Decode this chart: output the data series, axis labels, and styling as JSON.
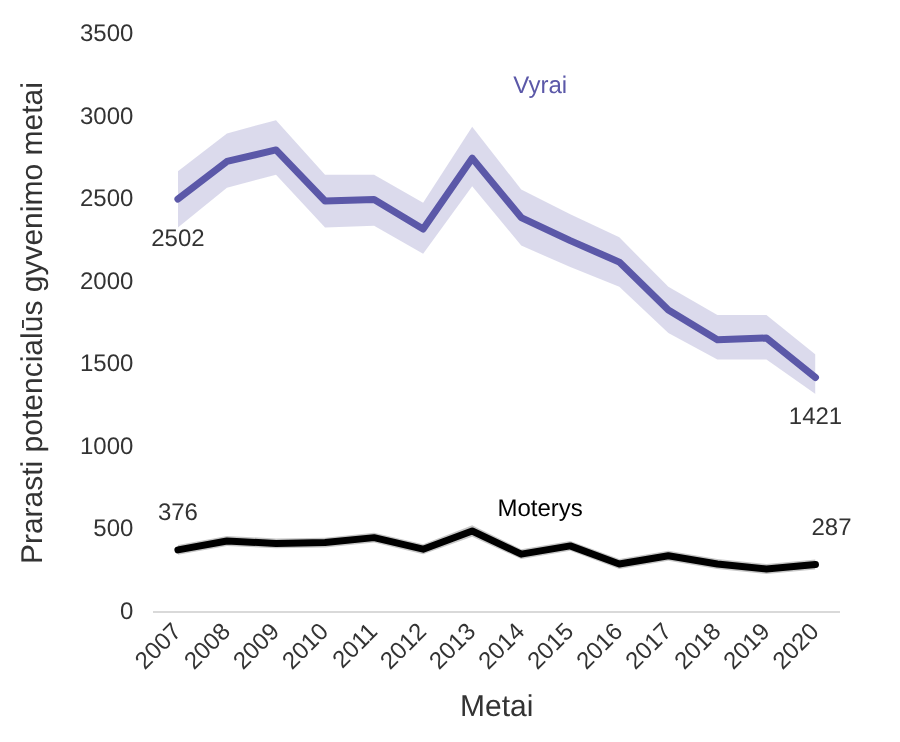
{
  "chart_data": {
    "type": "line",
    "xlabel": "Metai",
    "ylabel": "Prarasti potencialūs gyvenimo metai",
    "categories": [
      "2007",
      "2008",
      "2009",
      "2010",
      "2011",
      "2012",
      "2013",
      "2014",
      "2015",
      "2016",
      "2017",
      "2018",
      "2019",
      "2020"
    ],
    "ylim": [
      0,
      3500
    ],
    "yticks": [
      0,
      500,
      1000,
      1500,
      2000,
      2500,
      3000,
      3500
    ],
    "grid": false,
    "legend": false,
    "marker": "none",
    "line_style": "solid",
    "series": [
      {
        "name": "Vyrai",
        "color": "#5b58a8",
        "values": [
          2502,
          2730,
          2800,
          2490,
          2500,
          2320,
          2750,
          2390,
          2250,
          2120,
          1830,
          1650,
          1660,
          1421
        ],
        "lower": [
          2330,
          2570,
          2650,
          2330,
          2340,
          2170,
          2580,
          2220,
          2090,
          1970,
          1690,
          1530,
          1530,
          1320
        ],
        "upper": [
          2670,
          2900,
          2980,
          2650,
          2650,
          2480,
          2940,
          2560,
          2410,
          2270,
          1970,
          1800,
          1800,
          1560
        ],
        "value_labels": [
          "2502",
          null,
          null,
          null,
          null,
          null,
          null,
          null,
          null,
          null,
          null,
          null,
          null,
          "1421"
        ]
      },
      {
        "name": "Moterys",
        "color": "#000000",
        "values": [
          376,
          430,
          415,
          420,
          450,
          380,
          490,
          350,
          400,
          290,
          340,
          290,
          260,
          287
        ],
        "lower": [
          346,
          400,
          385,
          390,
          420,
          350,
          455,
          320,
          370,
          260,
          310,
          260,
          230,
          257
        ],
        "upper": [
          406,
          460,
          445,
          450,
          480,
          410,
          525,
          380,
          430,
          320,
          370,
          320,
          290,
          317
        ],
        "value_labels": [
          "376",
          null,
          null,
          null,
          null,
          null,
          null,
          null,
          null,
          null,
          null,
          null,
          null,
          "287"
        ]
      }
    ]
  }
}
